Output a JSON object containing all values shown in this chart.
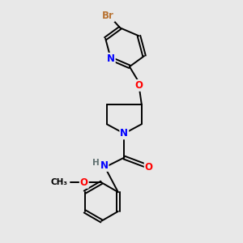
{
  "bg_color": "#e8e8e8",
  "atom_colors": {
    "Br": "#b87333",
    "N": "#0000ff",
    "O": "#ff0000",
    "C": "#000000",
    "H": "#607070"
  },
  "lw": 1.4,
  "font_size": 8.5
}
